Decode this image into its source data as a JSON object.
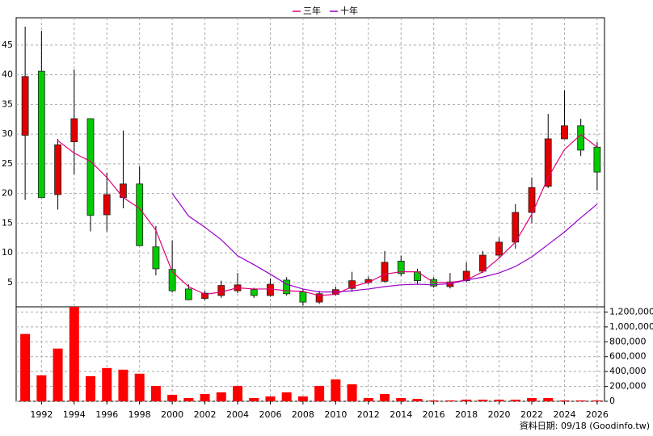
{
  "chart_data": [
    {
      "type": "candlestick",
      "x": [
        1991,
        1992,
        1993,
        1994,
        1995,
        1996,
        1997,
        1998,
        1999,
        2000,
        2001,
        2002,
        2003,
        2004,
        2005,
        2006,
        2007,
        2008,
        2009,
        2010,
        2011,
        2012,
        2013,
        2014,
        2015,
        2016,
        2017,
        2018,
        2019,
        2020,
        2021,
        2022,
        2023,
        2024,
        2025,
        2026
      ],
      "open": [
        29.8,
        40.6,
        19.8,
        28.7,
        32.6,
        16.4,
        19.3,
        21.6,
        11.0,
        7.2,
        3.9,
        2.3,
        2.8,
        3.6,
        3.8,
        2.8,
        5.4,
        3.4,
        1.7,
        3.0,
        4.0,
        5.0,
        5.2,
        8.6,
        6.8,
        5.5,
        4.3,
        5.3,
        6.9,
        9.6,
        11.8,
        16.8,
        21.2,
        29.2,
        31.4,
        27.8
      ],
      "high": [
        48.1,
        47.4,
        29.2,
        40.9,
        32.6,
        23.5,
        30.6,
        24.6,
        14.5,
        12.1,
        4.7,
        3.6,
        5.3,
        6.6,
        4.1,
        5.7,
        5.9,
        3.9,
        3.6,
        4.3,
        6.8,
        6.0,
        10.3,
        9.5,
        7.3,
        5.9,
        6.6,
        8.4,
        10.3,
        12.6,
        18.2,
        22.7,
        33.4,
        37.4,
        32.6,
        28.7
      ],
      "low": [
        18.9,
        19.3,
        17.3,
        23.2,
        13.6,
        13.6,
        17.5,
        11.2,
        6.2,
        3.3,
        2.0,
        2.0,
        2.4,
        3.2,
        2.4,
        2.6,
        2.8,
        1.1,
        1.4,
        2.8,
        3.4,
        4.7,
        5.0,
        6.1,
        4.7,
        4.1,
        4.0,
        5.0,
        6.6,
        9.1,
        10.7,
        15.0,
        20.9,
        29.2,
        26.3,
        20.5
      ],
      "close": [
        39.7,
        19.3,
        28.2,
        32.6,
        16.3,
        19.8,
        21.6,
        11.2,
        7.3,
        3.6,
        2.1,
        3.2,
        4.5,
        4.6,
        2.8,
        4.7,
        3.1,
        1.7,
        3.1,
        3.8,
        5.3,
        5.5,
        8.4,
        6.5,
        5.3,
        4.4,
        5.1,
        6.9,
        9.6,
        11.8,
        16.8,
        21.0,
        29.2,
        31.4,
        27.3,
        23.6
      ],
      "up_color": "#e00000",
      "down_color": "#00cc00",
      "series": [
        {
          "name": "三年",
          "color": "#e0007a",
          "values": [
            null,
            null,
            28.9,
            26.8,
            25.4,
            22.7,
            19.3,
            17.5,
            13.8,
            6.8,
            4.3,
            3.0,
            3.4,
            4.1,
            3.9,
            3.9,
            3.6,
            3.5,
            2.8,
            3.0,
            4.3,
            5.0,
            6.4,
            6.8,
            6.8,
            5.0,
            5.0,
            5.4,
            6.8,
            9.1,
            11.8,
            16.5,
            22.7,
            27.4,
            29.9,
            27.8
          ]
        },
        {
          "name": "十年",
          "color": "#9900cc",
          "values": [
            null,
            null,
            null,
            null,
            null,
            null,
            null,
            null,
            null,
            20.0,
            16.2,
            14.3,
            12.2,
            9.5,
            8.0,
            6.4,
            4.7,
            3.9,
            3.4,
            3.4,
            3.6,
            3.9,
            4.3,
            4.6,
            4.7,
            4.6,
            4.8,
            5.4,
            5.9,
            6.6,
            7.7,
            9.3,
            11.4,
            13.5,
            15.9,
            18.2
          ]
        }
      ],
      "xlim": [
        1990.45,
        2026.45
      ],
      "ylim": [
        0.9,
        49.6
      ],
      "yticks": [
        5,
        10,
        15,
        20,
        25,
        30,
        35,
        40,
        45
      ],
      "grid": true
    },
    {
      "type": "bar",
      "x": [
        1991,
        1992,
        1993,
        1994,
        1995,
        1996,
        1997,
        1998,
        1999,
        2000,
        2001,
        2002,
        2003,
        2004,
        2005,
        2006,
        2007,
        2008,
        2009,
        2010,
        2011,
        2012,
        2013,
        2014,
        2015,
        2016,
        2017,
        2018,
        2019,
        2020,
        2021,
        2022,
        2023,
        2024,
        2025,
        2026
      ],
      "values": [
        905000,
        349000,
        709000,
        1270000,
        338000,
        447000,
        425000,
        371000,
        207000,
        87000,
        44000,
        98000,
        120000,
        207000,
        44000,
        65000,
        120000,
        65000,
        207000,
        295000,
        229000,
        44000,
        98000,
        44000,
        33000,
        11000,
        11000,
        22000,
        22000,
        22000,
        22000,
        44000,
        44000,
        11000,
        11000,
        11000
      ],
      "color": "#ff0000",
      "xlim": [
        1990.45,
        2026.45
      ],
      "xticks": [
        1992,
        1994,
        1996,
        1998,
        2000,
        2002,
        2004,
        2006,
        2008,
        2010,
        2012,
        2014,
        2016,
        2018,
        2020,
        2022,
        2024,
        2026
      ],
      "ylim": [
        0,
        1270000
      ],
      "yticks": [
        0,
        {
          "value": 200000,
          "label": "200,000"
        },
        {
          "value": 400000,
          "label": "400,000"
        },
        {
          "value": 600000,
          "label": "600,000"
        },
        {
          "value": 800000,
          "label": "800,000"
        },
        {
          "value": 1000000,
          "label": "1,000,000"
        },
        {
          "value": 1200000,
          "label": "1,200,000"
        }
      ],
      "grid": true,
      "footnote": "資料日期: 09/18 (Goodinfo.tw)"
    }
  ]
}
